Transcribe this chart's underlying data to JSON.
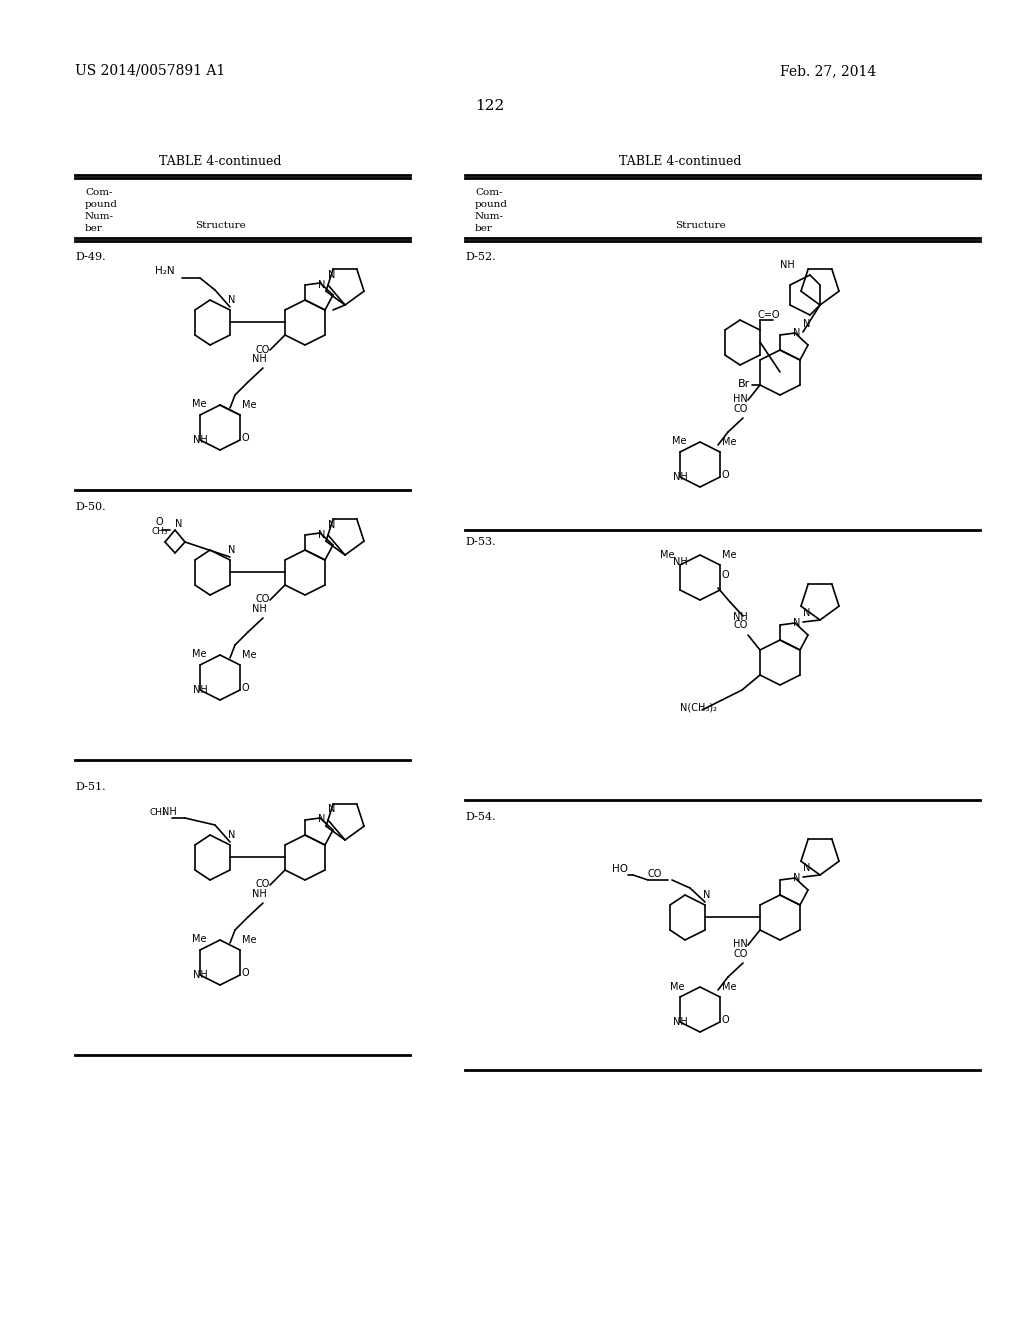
{
  "page_number": "122",
  "header_left": "US 2014/0057891 A1",
  "header_right": "Feb. 27, 2014",
  "table_title": "TABLE 4-continued",
  "col1_header": "Com-\npound\nNum-\nber",
  "col2_header": "Structure",
  "background_color": "#ffffff",
  "text_color": "#000000",
  "compounds": [
    "D-49.",
    "D-50.",
    "D-51.",
    "D-52.",
    "D-53.",
    "D-54."
  ]
}
